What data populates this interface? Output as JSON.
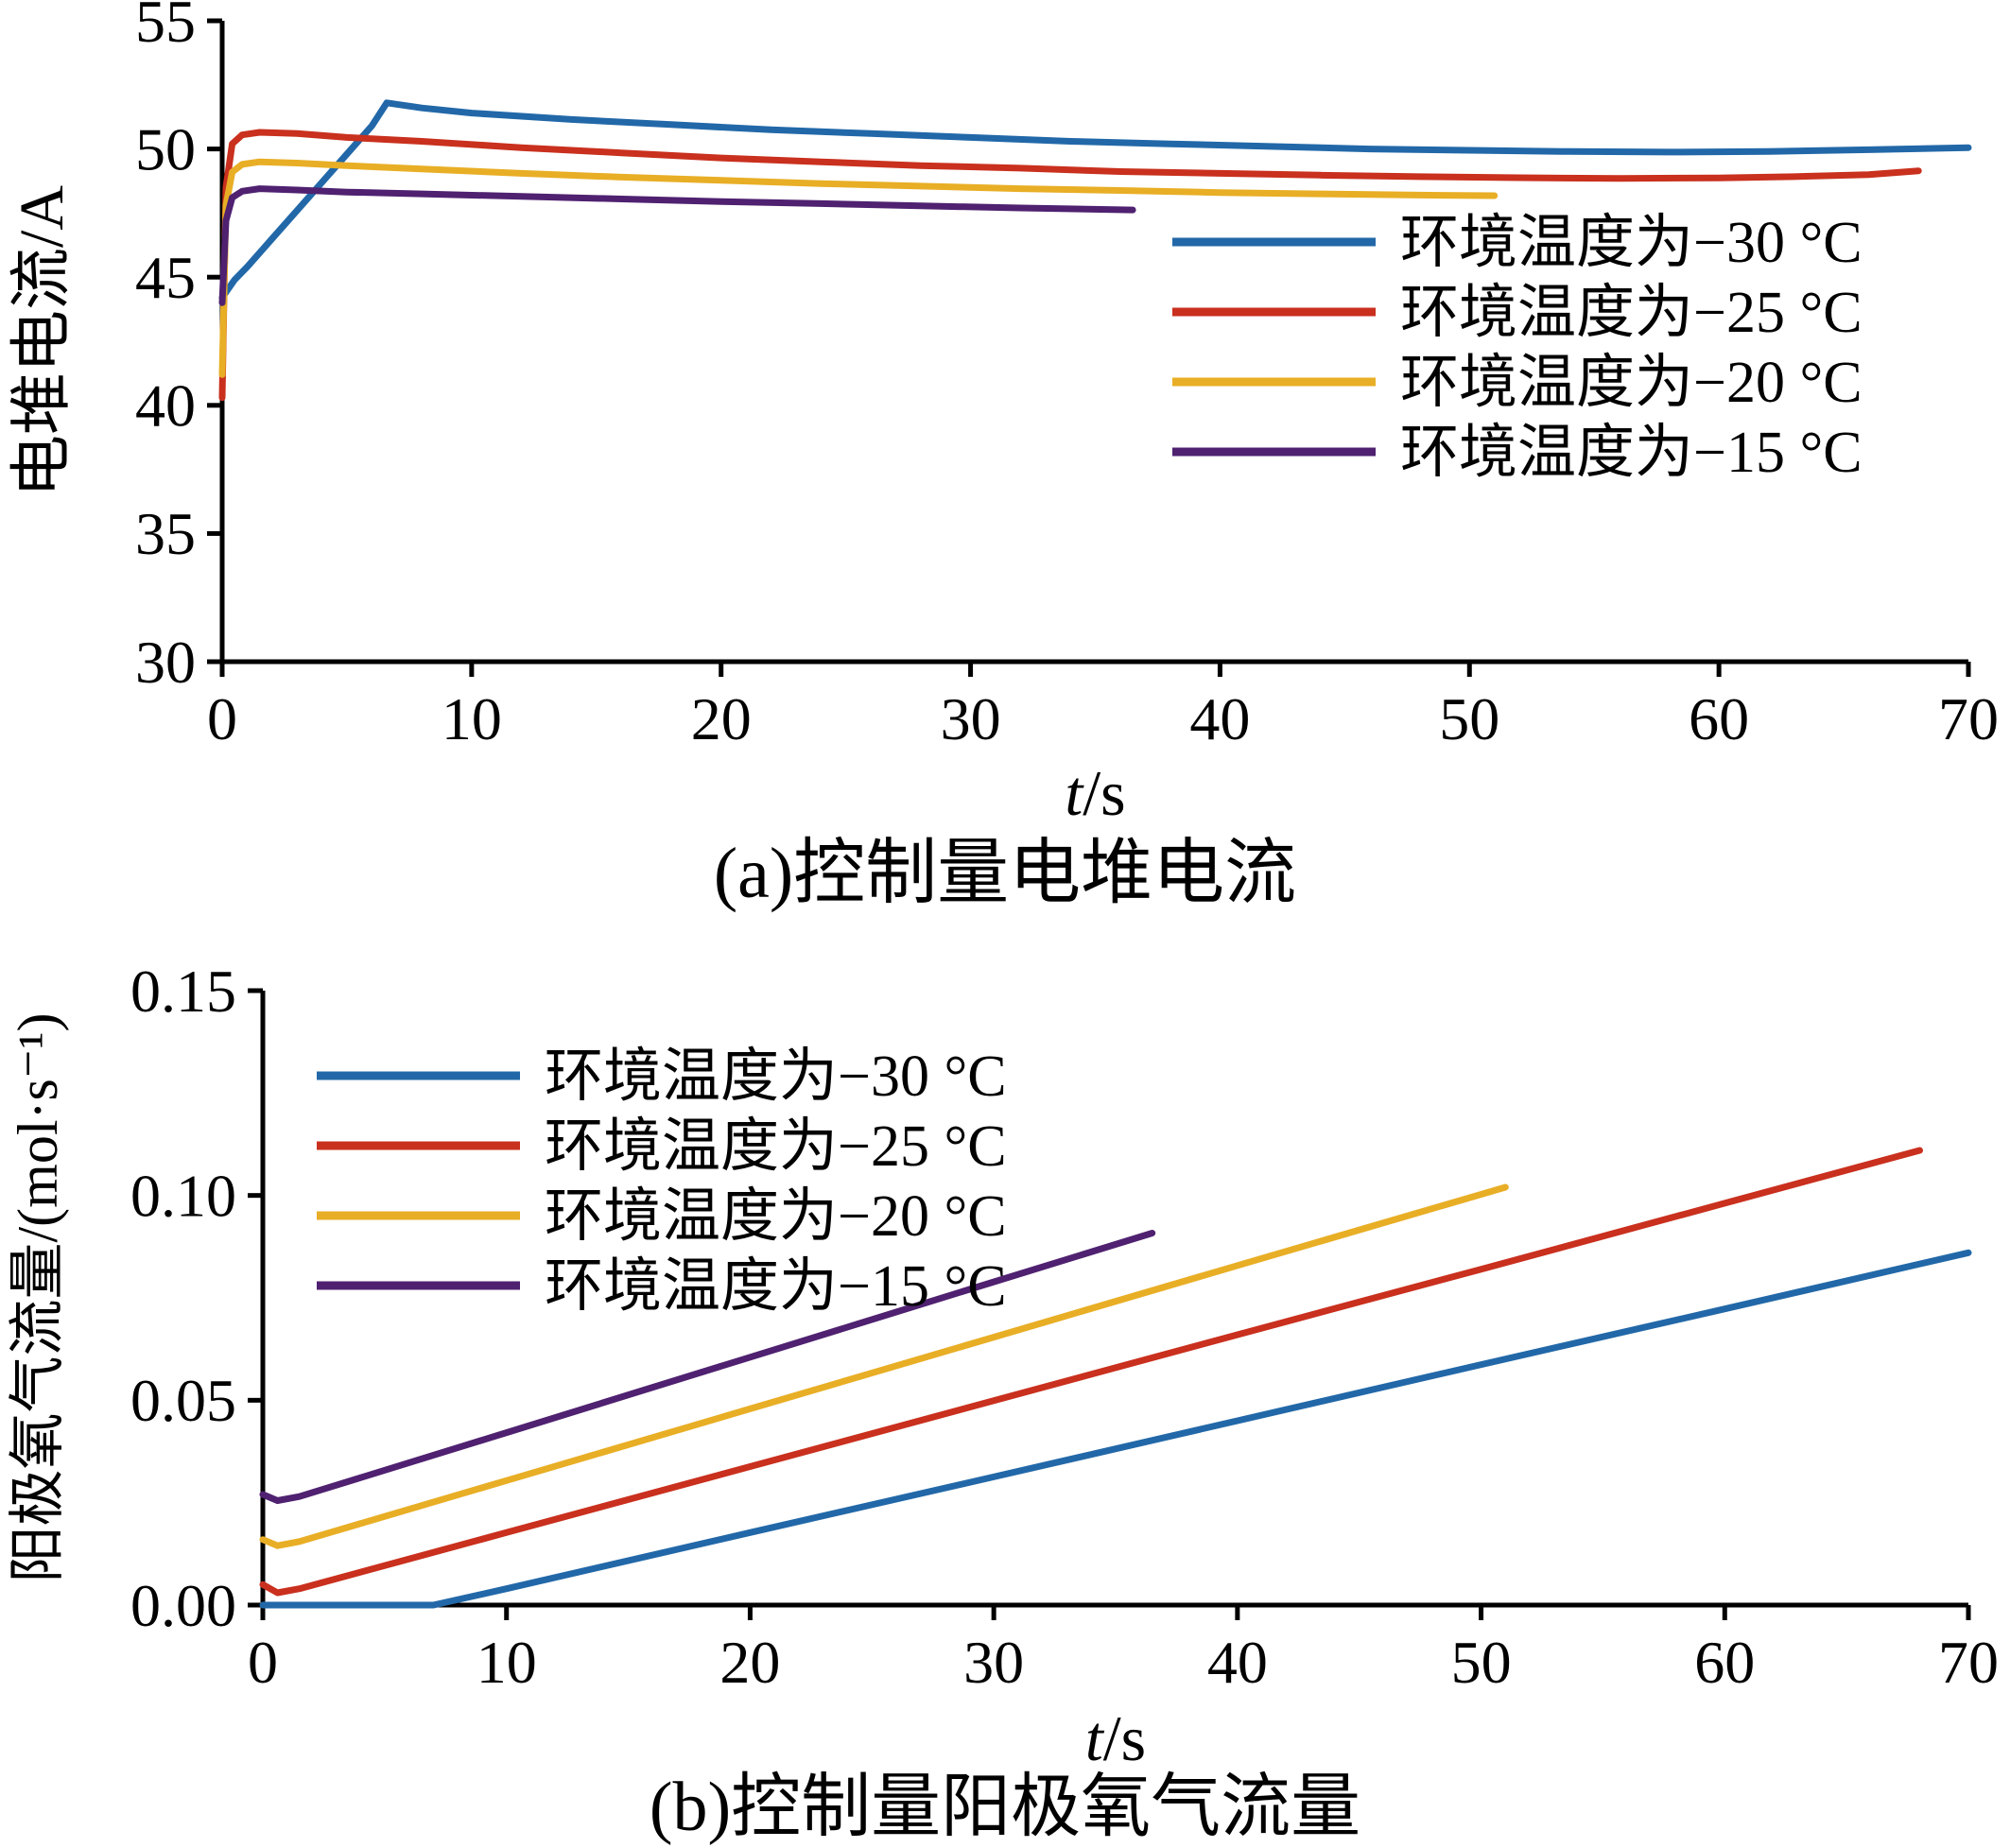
{
  "figure": {
    "caption_a": "(a)控制量电堆电流",
    "caption_b": "(b)控制量阳极氧气流量"
  },
  "chart_data": [
    {
      "type": "line",
      "title": "(a)控制量电堆电流",
      "xlabel_parts": [
        {
          "text": "t",
          "italic": true
        },
        {
          "text": "/s",
          "italic": false
        }
      ],
      "ylabel": "电堆电流/A",
      "xlim": [
        0,
        70
      ],
      "ylim": [
        30,
        55
      ],
      "xticks": [
        0,
        10,
        20,
        30,
        40,
        50,
        60,
        70
      ],
      "xtick_labels": [
        "0",
        "10",
        "20",
        "30",
        "40",
        "50",
        "60",
        "70"
      ],
      "yticks": [
        30,
        35,
        40,
        45,
        50,
        55
      ],
      "ytick_labels": [
        "30",
        "35",
        "40",
        "45",
        "50",
        "55"
      ],
      "grid": false,
      "legend_position": "right-middle",
      "series": [
        {
          "name": "环境温度为−30 °C",
          "color": "#2268a8",
          "points": [
            [
              0,
              44.2
            ],
            [
              0.5,
              44.9
            ],
            [
              1,
              45.4
            ],
            [
              2,
              46.5
            ],
            [
              3,
              47.6
            ],
            [
              4,
              48.7
            ],
            [
              5,
              49.8
            ],
            [
              6,
              50.9
            ],
            [
              6.6,
              51.8
            ],
            [
              8,
              51.6
            ],
            [
              10,
              51.4
            ],
            [
              14,
              51.15
            ],
            [
              18,
              50.95
            ],
            [
              22,
              50.75
            ],
            [
              26,
              50.6
            ],
            [
              30,
              50.45
            ],
            [
              34,
              50.3
            ],
            [
              38,
              50.2
            ],
            [
              42,
              50.1
            ],
            [
              46,
              50.0
            ],
            [
              50,
              49.95
            ],
            [
              54,
              49.9
            ],
            [
              58,
              49.88
            ],
            [
              62,
              49.9
            ],
            [
              66,
              49.97
            ],
            [
              70,
              50.05
            ]
          ]
        },
        {
          "name": "环境温度为−25 °C",
          "color": "#c9301e",
          "points": [
            [
              0,
              40.3
            ],
            [
              0.15,
              48.5
            ],
            [
              0.4,
              50.2
            ],
            [
              0.8,
              50.55
            ],
            [
              1.5,
              50.65
            ],
            [
              3,
              50.6
            ],
            [
              5,
              50.45
            ],
            [
              8,
              50.3
            ],
            [
              12,
              50.05
            ],
            [
              16,
              49.85
            ],
            [
              20,
              49.65
            ],
            [
              24,
              49.5
            ],
            [
              28,
              49.35
            ],
            [
              32,
              49.25
            ],
            [
              36,
              49.12
            ],
            [
              40,
              49.05
            ],
            [
              44,
              48.98
            ],
            [
              48,
              48.92
            ],
            [
              52,
              48.88
            ],
            [
              56,
              48.85
            ],
            [
              60,
              48.87
            ],
            [
              63,
              48.92
            ],
            [
              66,
              49.0
            ],
            [
              68,
              49.15
            ]
          ]
        },
        {
          "name": "环境温度为−20 °C",
          "color": "#e8ae25",
          "points": [
            [
              0,
              41.2
            ],
            [
              0.15,
              47.8
            ],
            [
              0.4,
              49.1
            ],
            [
              0.8,
              49.4
            ],
            [
              1.5,
              49.5
            ],
            [
              3,
              49.45
            ],
            [
              5,
              49.35
            ],
            [
              8,
              49.22
            ],
            [
              12,
              49.05
            ],
            [
              16,
              48.9
            ],
            [
              20,
              48.78
            ],
            [
              24,
              48.65
            ],
            [
              28,
              48.55
            ],
            [
              32,
              48.45
            ],
            [
              36,
              48.38
            ],
            [
              40,
              48.3
            ],
            [
              44,
              48.25
            ],
            [
              48,
              48.2
            ],
            [
              51,
              48.18
            ]
          ]
        },
        {
          "name": "环境温度为−15 °C",
          "color": "#4f2170",
          "points": [
            [
              0,
              44.0
            ],
            [
              0.15,
              47.2
            ],
            [
              0.4,
              48.1
            ],
            [
              0.8,
              48.35
            ],
            [
              1.5,
              48.45
            ],
            [
              3,
              48.4
            ],
            [
              5,
              48.32
            ],
            [
              8,
              48.25
            ],
            [
              12,
              48.15
            ],
            [
              16,
              48.05
            ],
            [
              20,
              47.95
            ],
            [
              24,
              47.87
            ],
            [
              28,
              47.78
            ],
            [
              32,
              47.7
            ],
            [
              36.5,
              47.62
            ]
          ]
        }
      ]
    },
    {
      "type": "line",
      "title": "(b)控制量阳极氧气流量",
      "xlabel_parts": [
        {
          "text": "t",
          "italic": true
        },
        {
          "text": "/s",
          "italic": false
        }
      ],
      "ylabel": "阳极氧气流量/(mol·s⁻¹)",
      "xlim": [
        0,
        70
      ],
      "ylim": [
        0,
        0.15
      ],
      "xticks": [
        0,
        10,
        20,
        30,
        40,
        50,
        60,
        70
      ],
      "xtick_labels": [
        "0",
        "10",
        "20",
        "30",
        "40",
        "50",
        "60",
        "70"
      ],
      "yticks": [
        0,
        0.05,
        0.1,
        0.15
      ],
      "ytick_labels": [
        "0.00",
        "0.05",
        "0.10",
        "0.15"
      ],
      "grid": false,
      "legend_position": "top-left",
      "series": [
        {
          "name": "环境温度为−30 °C",
          "color": "#2268a8",
          "points": [
            [
              0,
              0
            ],
            [
              7,
              0
            ],
            [
              10,
              0.004
            ],
            [
              20,
              0.0177
            ],
            [
              30,
              0.0313
            ],
            [
              40,
              0.045
            ],
            [
              50,
              0.0587
            ],
            [
              60,
              0.0723
            ],
            [
              70,
              0.086
            ]
          ]
        },
        {
          "name": "环境温度为−25 °C",
          "color": "#c9301e",
          "points": [
            [
              0,
              0.005
            ],
            [
              0.6,
              0.003
            ],
            [
              1.5,
              0.004
            ],
            [
              10,
              0.0177
            ],
            [
              20,
              0.0338
            ],
            [
              30,
              0.0499
            ],
            [
              40,
              0.066
            ],
            [
              50,
              0.082
            ],
            [
              60,
              0.0981
            ],
            [
              68,
              0.111
            ]
          ]
        },
        {
          "name": "环境温度为−20 °C",
          "color": "#e8ae25",
          "points": [
            [
              0,
              0.016
            ],
            [
              0.6,
              0.0145
            ],
            [
              1.5,
              0.0155
            ],
            [
              10,
              0.0304
            ],
            [
              20,
              0.0479
            ],
            [
              30,
              0.0654
            ],
            [
              40,
              0.0829
            ],
            [
              51,
              0.102
            ]
          ]
        },
        {
          "name": "环境温度为−15 °C",
          "color": "#4f2170",
          "points": [
            [
              0,
              0.027
            ],
            [
              0.6,
              0.0255
            ],
            [
              1.5,
              0.0265
            ],
            [
              10,
              0.0421
            ],
            [
              20,
              0.0605
            ],
            [
              30,
              0.0789
            ],
            [
              36.5,
              0.0908
            ]
          ]
        }
      ]
    }
  ]
}
